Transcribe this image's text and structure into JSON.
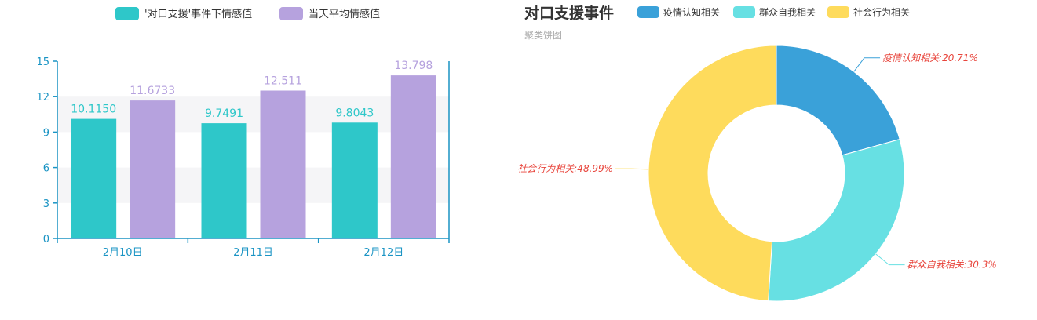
{
  "colors": {
    "axis": "#1a94c4",
    "band": "#f5f5f7",
    "series_teal": "#2ec7c9",
    "series_purple": "#b6a2de",
    "pie_blue": "#3aa1d9",
    "pie_cyan": "#67e0e3",
    "pie_yellow": "#fedb5c",
    "pie_label": "#e8453c"
  },
  "chart_data": [
    {
      "type": "bar",
      "categories": [
        "2月10日",
        "2月11日",
        "2月12日"
      ],
      "series": [
        {
          "name": "'对口支援'事件下情感值",
          "values": [
            10.115,
            9.7491,
            9.8043
          ],
          "labels": [
            "10.1150",
            "9.7491",
            "9.8043"
          ],
          "color": "#2ec7c9"
        },
        {
          "name": "当天平均情感值",
          "values": [
            11.6733,
            12.511,
            13.798
          ],
          "labels": [
            "11.6733",
            "12.511",
            "13.798"
          ],
          "color": "#b6a2de"
        }
      ],
      "ylim": [
        0,
        15
      ],
      "yticks": [
        0,
        3,
        6,
        9,
        12,
        15
      ],
      "ytick_labels": [
        "0",
        "3",
        "6",
        "9",
        "12",
        "15"
      ],
      "legend_position": "top-center",
      "grid": "alternating horizontal bands"
    },
    {
      "type": "pie",
      "variant": "donut",
      "title": "对口支援事件",
      "subtitle": "聚类饼图",
      "legend_position": "top",
      "slices": [
        {
          "name": "疫情认知相关",
          "value": 20.71,
          "label": "疫情认知相关:20.71%",
          "color": "#3aa1d9"
        },
        {
          "name": "群众自我相关",
          "value": 30.3,
          "label": "群众自我相关:30.3%",
          "color": "#67e0e3"
        },
        {
          "name": "社会行为相关",
          "value": 48.99,
          "label": "社会行为相关:48.99%",
          "color": "#fedb5c"
        }
      ]
    }
  ]
}
